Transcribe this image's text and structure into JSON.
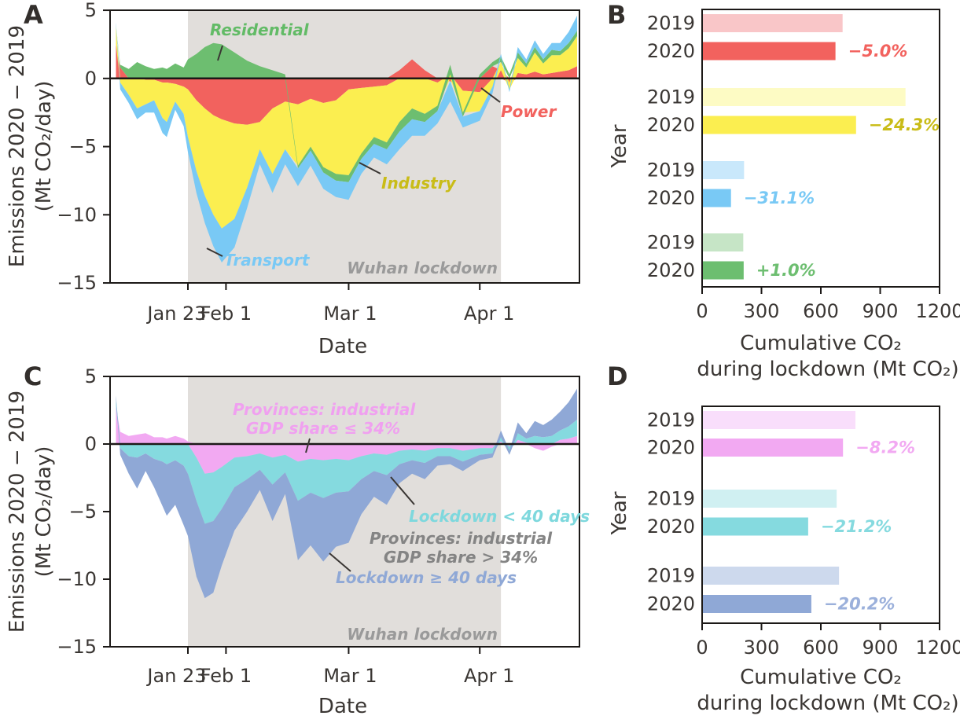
{
  "figure": {
    "letters": [
      "A",
      "B",
      "C",
      "D"
    ]
  },
  "chart_data": [
    {
      "panel": "A",
      "type": "area",
      "stacked": true,
      "ylabel_lines": [
        "Emissions 2020 − 2019",
        "(Mt CO₂/day)"
      ],
      "xlabel": "Date",
      "ylim": [
        -15,
        5
      ],
      "yticks": [
        5,
        0,
        -5,
        -10,
        -15
      ],
      "xticks": [
        {
          "day": 23,
          "label": "Jan 23"
        },
        {
          "day": 32,
          "label": "Feb 1"
        },
        {
          "day": 61,
          "label": "Mar 1"
        },
        {
          "day": 92,
          "label": "Apr 1"
        }
      ],
      "x_unit": "day of year 2020",
      "lockdown_band_days": [
        23,
        97
      ],
      "x_days": [
        6,
        7,
        9,
        11,
        13,
        15,
        17,
        18,
        20,
        22,
        23,
        25,
        27,
        29,
        31,
        34,
        37,
        40,
        43,
        46,
        49,
        52,
        55,
        58,
        61,
        64,
        67,
        70,
        73,
        76,
        79,
        82,
        85,
        88,
        92,
        95,
        97,
        99,
        101,
        103,
        105,
        107,
        109,
        111,
        113,
        115
      ],
      "series": [
        {
          "name": "Power",
          "color": "#F2625E",
          "values": [
            2.5,
            0.8,
            0.0,
            0.0,
            -0.1,
            -0.1,
            -0.3,
            -0.3,
            -0.4,
            -0.6,
            -0.8,
            -1.6,
            -2.2,
            -2.7,
            -3.0,
            -3.3,
            -3.4,
            -3.2,
            -2.2,
            -1.7,
            -1.9,
            -1.5,
            -1.8,
            -1.6,
            -0.8,
            -0.7,
            -0.6,
            -0.5,
            0.6,
            1.4,
            0.6,
            -0.3,
            -0.2,
            -0.9,
            -1.0,
            0.9,
            0.6,
            -0.3,
            0.4,
            0.3,
            0.5,
            0.3,
            0.4,
            0.5,
            0.6,
            0.9
          ]
        },
        {
          "name": "Industry",
          "color": "#FBEE50",
          "values": [
            1.4,
            -0.3,
            -1.2,
            -2.2,
            -1.8,
            -1.5,
            -2.6,
            -2.9,
            -1.3,
            -2.0,
            -3.5,
            -5.2,
            -6.4,
            -7.3,
            -8.0,
            -7.0,
            -4.6,
            -2.0,
            -4.8,
            -3.5,
            -4.5,
            -3.5,
            -4.7,
            -5.4,
            -6.3,
            -4.8,
            -3.7,
            -4.2,
            -3.2,
            -2.2,
            -2.6,
            -1.7,
            0.3,
            -1.6,
            -1.4,
            -0.6,
            0.6,
            -0.5,
            1.1,
            0.5,
            1.4,
            0.8,
            1.3,
            1.2,
            1.6,
            2.2
          ]
        },
        {
          "name": "Residential",
          "color": "#6DBE70",
          "values": [
            0.0,
            0.2,
            0.7,
            1.2,
            0.9,
            0.7,
            0.8,
            0.7,
            1.1,
            0.8,
            1.4,
            1.8,
            2.3,
            2.6,
            2.5,
            1.9,
            1.3,
            0.9,
            0.6,
            0.3,
            -0.2,
            -0.3,
            -0.4,
            -0.5,
            -0.5,
            -0.4,
            -0.5,
            -0.5,
            -0.7,
            -0.8,
            -0.6,
            -0.4,
            0.7,
            -0.3,
            0.3,
            0.3,
            0.4,
            0.3,
            0.4,
            0.3,
            0.4,
            0.3,
            0.4,
            0.3,
            0.4,
            0.4
          ]
        },
        {
          "name": "Transport",
          "color": "#79C9F5",
          "values": [
            0.2,
            -0.5,
            -0.6,
            -0.8,
            -0.6,
            -0.9,
            -1.1,
            -1.1,
            -0.6,
            -0.9,
            -1.1,
            -1.6,
            -2.0,
            -2.3,
            -2.5,
            -2.1,
            -1.5,
            -1.1,
            -1.4,
            -1.1,
            -1.3,
            -1.1,
            -1.2,
            -1.2,
            -1.3,
            -1.1,
            -1.0,
            -1.1,
            -1.3,
            -1.2,
            -1.0,
            -0.9,
            -1.5,
            -0.8,
            -0.7,
            -0.5,
            0.2,
            -0.2,
            0.4,
            0.3,
            0.5,
            0.4,
            0.5,
            0.6,
            0.8,
            1.1
          ]
        }
      ],
      "annotations": [
        {
          "text": "Residential",
          "color": "#62BB66"
        },
        {
          "text": "Power",
          "color": "#F2625E"
        },
        {
          "text": "Industry",
          "color": "#C9BC17"
        },
        {
          "text": "Transport",
          "color": "#79C9F5"
        },
        {
          "text": "Wuhan lockdown",
          "color": "#9A9A9A"
        }
      ]
    },
    {
      "panel": "B",
      "type": "bar",
      "orientation": "horizontal",
      "ylabel": "Year",
      "xlabel_lines": [
        "Cumulative CO₂",
        "during lockdown (Mt CO₂)"
      ],
      "xlim": [
        0,
        1200
      ],
      "xticks": [
        0,
        300,
        600,
        900,
        1200
      ],
      "groups": [
        {
          "name": "Power",
          "change_label": "−5.0%",
          "label_color": "#F2625E",
          "rows": [
            {
              "year": "2019",
              "value": 710,
              "color": "#F9C6C8"
            },
            {
              "year": "2020",
              "value": 674,
              "color": "#F2625E"
            }
          ]
        },
        {
          "name": "Industry",
          "change_label": "−24.3%",
          "label_color": "#C9BC17",
          "rows": [
            {
              "year": "2019",
              "value": 1028,
              "color": "#FDFBC4"
            },
            {
              "year": "2020",
              "value": 778,
              "color": "#FBEE50"
            }
          ]
        },
        {
          "name": "Transport",
          "change_label": "−31.1%",
          "label_color": "#79C9F5",
          "rows": [
            {
              "year": "2019",
              "value": 212,
              "color": "#C9E8FB"
            },
            {
              "year": "2020",
              "value": 146,
              "color": "#79C9F5"
            }
          ]
        },
        {
          "name": "Residential",
          "change_label": "+1.0%",
          "label_color": "#6DBE70",
          "rows": [
            {
              "year": "2019",
              "value": 208,
              "color": "#C6E5C6"
            },
            {
              "year": "2020",
              "value": 210,
              "color": "#6DBE70"
            }
          ]
        }
      ]
    },
    {
      "panel": "C",
      "type": "area",
      "stacked": true,
      "ylabel_lines": [
        "Emissions 2020 − 2019",
        "(Mt CO₂/day)"
      ],
      "xlabel": "Date",
      "ylim": [
        -15,
        5
      ],
      "yticks": [
        5,
        0,
        -5,
        -10,
        -15
      ],
      "xticks": [
        {
          "day": 23,
          "label": "Jan 23"
        },
        {
          "day": 32,
          "label": "Feb 1"
        },
        {
          "day": 61,
          "label": "Mar 1"
        },
        {
          "day": 92,
          "label": "Apr 1"
        }
      ],
      "x_unit": "day of year 2020",
      "lockdown_band_days": [
        23,
        97
      ],
      "x_days": [
        6,
        7,
        9,
        11,
        13,
        15,
        17,
        18,
        20,
        22,
        23,
        25,
        27,
        29,
        31,
        34,
        37,
        40,
        43,
        46,
        49,
        52,
        55,
        58,
        61,
        64,
        67,
        70,
        73,
        76,
        79,
        82,
        85,
        88,
        92,
        95,
        97,
        99,
        101,
        103,
        105,
        107,
        109,
        111,
        113,
        115
      ],
      "series": [
        {
          "name": "Provinces: industrial GDP share ≤ 34%",
          "color": "#F2A9F2",
          "values": [
            2.8,
            0.9,
            0.6,
            0.7,
            0.8,
            0.5,
            0.5,
            0.4,
            0.6,
            0.4,
            0.2,
            -1.0,
            -2.2,
            -2.1,
            -1.7,
            -1.0,
            -0.9,
            -0.7,
            -1.0,
            -0.8,
            -1.3,
            -1.1,
            -1.2,
            -1.1,
            -1.2,
            -0.9,
            -0.7,
            -0.8,
            -0.5,
            -0.4,
            -0.5,
            -0.3,
            -0.3,
            -0.5,
            -0.3,
            -0.3,
            0.2,
            -0.2,
            0.3,
            0.1,
            -0.3,
            -0.5,
            -0.2,
            0.3,
            0.4,
            0.6
          ]
        },
        {
          "name": "Lockdown < 40 days",
          "color": "#85DADF",
          "values": [
            0.5,
            -0.3,
            -0.9,
            -1.0,
            -0.7,
            -1.1,
            -1.3,
            -1.5,
            -1.2,
            -1.6,
            -2.2,
            -3.2,
            -3.7,
            -3.6,
            -3.1,
            -2.2,
            -1.7,
            -1.2,
            -2.0,
            -1.3,
            -2.9,
            -2.5,
            -2.8,
            -2.5,
            -2.3,
            -1.7,
            -1.3,
            -1.5,
            -1.0,
            -0.8,
            -0.9,
            -0.6,
            -0.6,
            -0.8,
            -0.5,
            -0.4,
            0.3,
            -0.3,
            0.5,
            0.3,
            0.6,
            0.5,
            0.6,
            0.7,
            0.9,
            1.2
          ]
        },
        {
          "name": "Lockdown ≥ 40 days",
          "color": "#8FA8D6",
          "values": [
            0.3,
            -0.5,
            -1.3,
            -2.3,
            -1.3,
            -2.1,
            -3.3,
            -3.8,
            -3.3,
            -4.4,
            -4.6,
            -5.6,
            -5.5,
            -5.3,
            -4.2,
            -3.2,
            -2.4,
            -1.5,
            -2.7,
            -1.6,
            -4.4,
            -3.9,
            -4.7,
            -4.0,
            -3.8,
            -2.6,
            -1.9,
            -2.2,
            -1.4,
            -1.0,
            -1.2,
            -0.7,
            -0.6,
            -0.7,
            -0.4,
            -0.3,
            0.5,
            -0.3,
            0.8,
            0.4,
            1.1,
            0.9,
            1.2,
            1.4,
            1.8,
            2.3
          ]
        }
      ],
      "annotations": [
        {
          "lines": [
            "Provinces: industrial",
            "GDP share ≤ 34%"
          ],
          "color": "#F0A0F0"
        },
        {
          "text": "Lockdown < 40 days",
          "color": "#7ED8DD"
        },
        {
          "lines": [
            "Provinces: industrial",
            "GDP share > 34%"
          ],
          "color": "#848484"
        },
        {
          "text": "Lockdown ≥ 40 days",
          "color": "#8FA8D6"
        },
        {
          "text": "Wuhan lockdown",
          "color": "#9A9A9A"
        }
      ]
    },
    {
      "panel": "D",
      "type": "bar",
      "orientation": "horizontal",
      "ylabel": "Year",
      "xlabel_lines": [
        "Cumulative CO₂",
        "during lockdown (Mt CO₂)"
      ],
      "xlim": [
        0,
        1200
      ],
      "xticks": [
        0,
        300,
        600,
        900,
        1200
      ],
      "groups": [
        {
          "name": "Provinces: industrial GDP share ≤ 34%",
          "change_label": "−8.2%",
          "label_color": "#F2A9F2",
          "rows": [
            {
              "year": "2019",
              "value": 775,
              "color": "#F9DEFB"
            },
            {
              "year": "2020",
              "value": 712,
              "color": "#F2A9F2"
            }
          ]
        },
        {
          "name": "Lockdown < 40 days",
          "change_label": "−21.2%",
          "label_color": "#85DADF",
          "rows": [
            {
              "year": "2019",
              "value": 680,
              "color": "#D0F0F2"
            },
            {
              "year": "2020",
              "value": 536,
              "color": "#85DADF"
            }
          ]
        },
        {
          "name": "Lockdown ≥ 40 days",
          "change_label": "−20.2%",
          "label_color": "#9BB0DB",
          "rows": [
            {
              "year": "2019",
              "value": 692,
              "color": "#CDD9ED"
            },
            {
              "year": "2020",
              "value": 552,
              "color": "#8FA8D6"
            }
          ]
        }
      ]
    }
  ],
  "band_color": "#E1DEDB",
  "axis_color": "#1c1917",
  "text_color": "#3a3633"
}
